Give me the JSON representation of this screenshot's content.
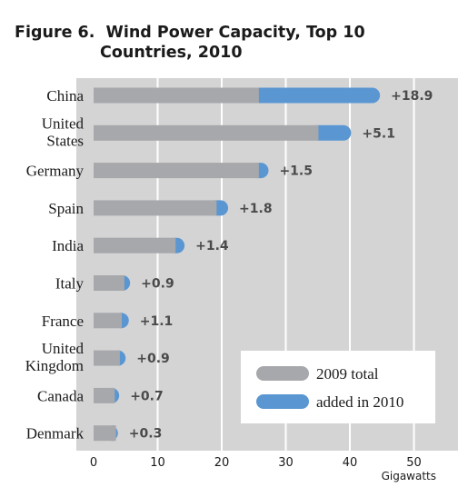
{
  "figure": {
    "title_line1": "Figure 6.  Wind Power Capacity, Top 10",
    "title_line2": "Countries, 2010"
  },
  "chart_data": {
    "type": "bar",
    "orientation": "horizontal",
    "stacked": true,
    "title": "Figure 6.  Wind Power Capacity, Top 10 Countries, 2010",
    "xlabel": "Gigawatts",
    "xlim": [
      0,
      50
    ],
    "xticks": [
      0,
      10,
      20,
      30,
      40,
      50
    ],
    "grid": true,
    "legend_position": "bottom-right",
    "categories": [
      [
        "China"
      ],
      [
        "United",
        "States"
      ],
      [
        "Germany"
      ],
      [
        "Spain"
      ],
      [
        "India"
      ],
      [
        "Italy"
      ],
      [
        "France"
      ],
      [
        "United",
        "Kingdom"
      ],
      [
        "Canada"
      ],
      [
        "Denmark"
      ]
    ],
    "series": [
      {
        "name": "2009 total",
        "color": "#a7a8ab",
        "values": [
          25.8,
          35.1,
          25.8,
          19.2,
          12.8,
          4.8,
          4.4,
          4.1,
          3.3,
          3.5
        ]
      },
      {
        "name": "added in 2010",
        "color": "#5a96d2",
        "values": [
          18.9,
          5.1,
          1.5,
          1.8,
          1.4,
          0.9,
          1.1,
          0.9,
          0.7,
          0.3
        ]
      }
    ],
    "delta_labels": [
      "+18.9",
      "+5.1",
      "+1.5",
      "+1.8",
      "+1.4",
      "+0.9",
      "+1.1",
      "+0.9",
      "+0.7",
      "+0.3"
    ],
    "background_color": "#d4d4d5"
  }
}
